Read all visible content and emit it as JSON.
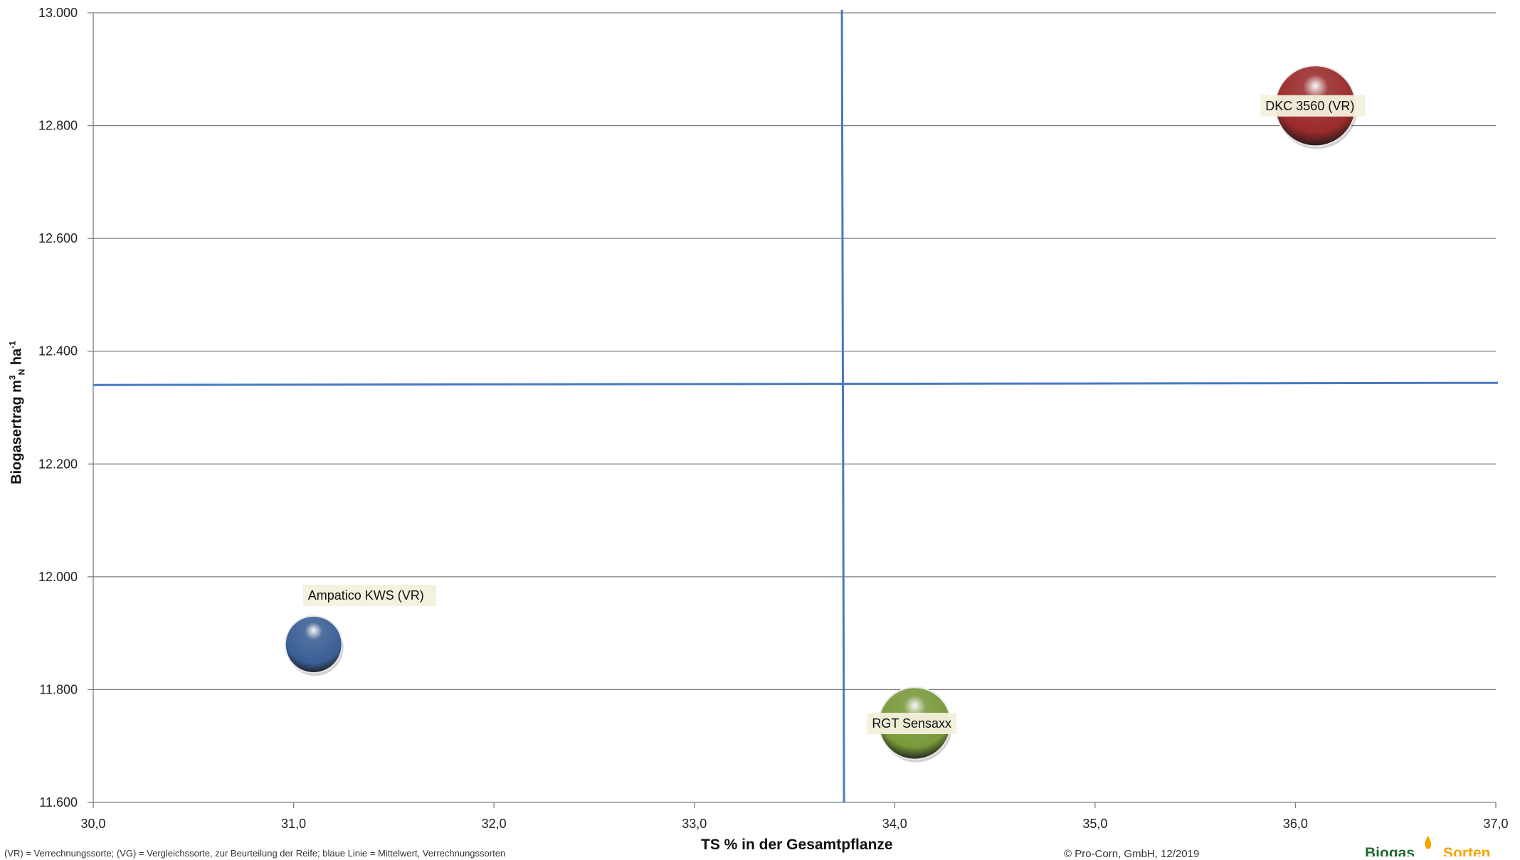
{
  "chart_data": {
    "type": "scatter",
    "title": "",
    "xlabel": "TS % in der Gesamtpflanze",
    "ylabel_parts": {
      "main": "Biogasertrag m",
      "sup1": "3",
      "sub": "N",
      "unit": "ha",
      "sup2": "-1"
    },
    "xlim": [
      30.0,
      37.0
    ],
    "ylim": [
      11600,
      13000
    ],
    "x_ticks": [
      "30,0",
      "31,0",
      "32,0",
      "33,0",
      "34,0",
      "35,0",
      "36,0",
      "37,0"
    ],
    "y_ticks": [
      "11.600",
      "11.800",
      "12.000",
      "12.200",
      "12.400",
      "12.600",
      "12.800",
      "13.000"
    ],
    "grid": "horizontal",
    "mean_lines": {
      "x": 33.74,
      "y": 12342
    },
    "points": [
      {
        "label": "Ampatico KWS (VR)",
        "x": 31.1,
        "y": 11880,
        "color": "#3a5f96",
        "size": 1
      },
      {
        "label": "RGT Sensaxx",
        "x": 34.1,
        "y": 11740,
        "color": "#7a9a3a",
        "size": 1.6
      },
      {
        "label": "DKC 3560 (VR)",
        "x": 36.1,
        "y": 12835,
        "color": "#9c2a2a",
        "size": 2
      }
    ]
  },
  "footer": {
    "footnote": "(VR) = Verrechnungssorte; (VG) = Vergleichssorte, zur Beurteilung der Reife; blaue Linie = Mittelwert, Verrechnungssorten",
    "copyright": "© Pro-Corn, GmbH, 12/2019",
    "logo_text1": "Biogas",
    "logo_text2": "Sorten"
  },
  "colors": {
    "mean_line": "#4a78c0",
    "grid": "#7f7f7f",
    "label_bg": "#f3f0dc"
  }
}
